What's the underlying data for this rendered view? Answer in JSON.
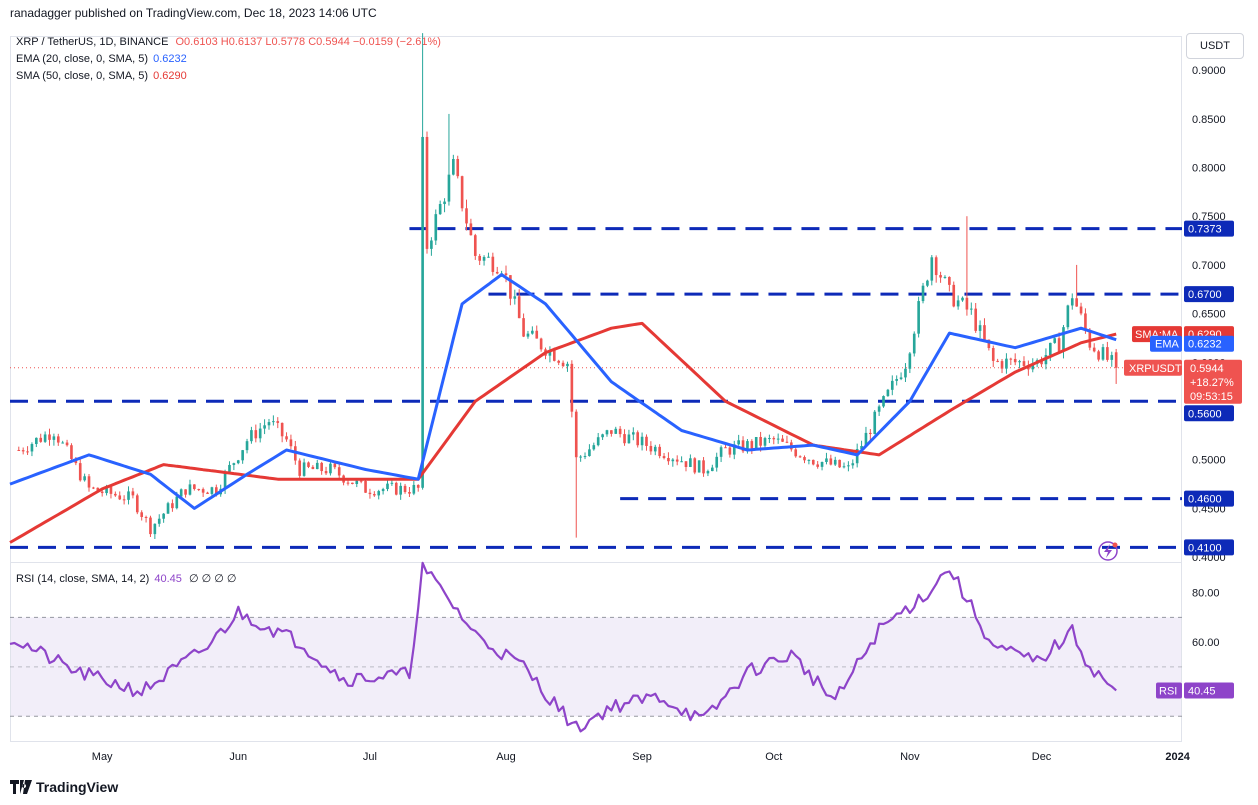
{
  "header": {
    "published": "ranadagger published on TradingView.com, Dec 18, 2023 14:06 UTC"
  },
  "legend": {
    "symbol": "XRP / TetherUS, 1D, BINANCE",
    "ohlc": "O0.6103 H0.6137 L0.5778 C0.5944 −0.0159 (−2.61%)",
    "ema_label": "EMA (20, close, 0, SMA, 5)",
    "ema_value": "0.6232",
    "sma_label": "SMA (50, close, 0, SMA, 5)",
    "sma_value": "0.6290",
    "rsi_label": "RSI (14, close, SMA, 14, 2)",
    "rsi_value": "40.45",
    "rsi_extra": "∅ ∅ ∅ ∅"
  },
  "scale_button": "USDT",
  "price_axis_ticks": [
    "0.9000",
    "0.8500",
    "0.8000",
    "0.7500",
    "0.7000",
    "0.6500",
    "0.6000",
    "0.5500",
    "0.5000",
    "0.4500",
    "0.4000"
  ],
  "rsi_axis_ticks": [
    "80.00",
    "60.00"
  ],
  "time_axis_ticks": [
    "May",
    "Jun",
    "Jul",
    "Aug",
    "Sep",
    "Oct",
    "Nov",
    "Dec",
    "2024"
  ],
  "price_labels": {
    "level_0737": "0.7373",
    "level_0670": "0.6700",
    "sma_ma_tag": "SMA:MA",
    "sma_ma_value": "0.6290",
    "ema_tag": "EMA",
    "ema_value": "0.6232",
    "symbol_tag": "XRPUSDT",
    "last_price": "0.5944",
    "change": "+18.27%",
    "countdown": "09:53:15",
    "level_0560": "0.5600",
    "level_0460": "0.4600",
    "level_0410": "0.4100",
    "rsi_tag": "RSI",
    "rsi_value": "40.45"
  },
  "footer": {
    "brand": "TradingView"
  },
  "colors": {
    "up": "#26a69a",
    "down": "#ef5350",
    "ema": "#2962ff",
    "sma": "#e53935",
    "level": "#0d2ab8",
    "rsi": "#8e44c9",
    "rsi_band": "#ede7f6"
  },
  "chart_data": {
    "type": "candlestick",
    "symbol": "XRP / TetherUS",
    "interval": "1D",
    "exchange": "BINANCE",
    "x_range": [
      "2023-04-10",
      "2024-01-02"
    ],
    "ylim": [
      0.395,
      0.935
    ],
    "horizontal_levels": [
      0.7373,
      0.67,
      0.56,
      0.46,
      0.41
    ],
    "price_anchor_points": [
      {
        "date": "2023-04-12",
        "close": 0.51
      },
      {
        "date": "2023-04-20",
        "close": 0.53
      },
      {
        "date": "2023-04-28",
        "close": 0.47
      },
      {
        "date": "2023-05-08",
        "close": 0.46
      },
      {
        "date": "2023-05-12",
        "close": 0.43
      },
      {
        "date": "2023-05-20",
        "close": 0.47
      },
      {
        "date": "2023-05-27",
        "close": 0.47
      },
      {
        "date": "2023-06-03",
        "close": 0.52
      },
      {
        "date": "2023-06-08",
        "close": 0.54
      },
      {
        "date": "2023-06-12",
        "close": 0.52
      },
      {
        "date": "2023-06-15",
        "close": 0.49
      },
      {
        "date": "2023-06-22",
        "close": 0.49
      },
      {
        "date": "2023-06-30",
        "close": 0.47
      },
      {
        "date": "2023-07-08",
        "close": 0.47
      },
      {
        "date": "2023-07-12",
        "close": 0.47
      },
      {
        "date": "2023-07-13",
        "close": 0.82
      },
      {
        "date": "2023-07-14",
        "close": 0.72
      },
      {
        "date": "2023-07-20",
        "close": 0.8
      },
      {
        "date": "2023-07-25",
        "close": 0.71
      },
      {
        "date": "2023-07-31",
        "close": 0.7
      },
      {
        "date": "2023-08-05",
        "close": 0.63
      },
      {
        "date": "2023-08-15",
        "close": 0.6
      },
      {
        "date": "2023-08-17",
        "close": 0.5
      },
      {
        "date": "2023-08-25",
        "close": 0.53
      },
      {
        "date": "2023-09-05",
        "close": 0.51
      },
      {
        "date": "2023-09-15",
        "close": 0.49
      },
      {
        "date": "2023-09-20",
        "close": 0.51
      },
      {
        "date": "2023-10-01",
        "close": 0.52
      },
      {
        "date": "2023-10-10",
        "close": 0.5
      },
      {
        "date": "2023-10-18",
        "close": 0.49
      },
      {
        "date": "2023-10-25",
        "close": 0.55
      },
      {
        "date": "2023-10-31",
        "close": 0.6
      },
      {
        "date": "2023-11-06",
        "close": 0.71
      },
      {
        "date": "2023-11-10",
        "close": 0.67
      },
      {
        "date": "2023-11-15",
        "close": 0.65
      },
      {
        "date": "2023-11-20",
        "close": 0.6
      },
      {
        "date": "2023-11-30",
        "close": 0.6
      },
      {
        "date": "2023-12-05",
        "close": 0.62
      },
      {
        "date": "2023-12-08",
        "close": 0.67
      },
      {
        "date": "2023-12-12",
        "close": 0.62
      },
      {
        "date": "2023-12-18",
        "close": 0.5944
      }
    ],
    "spikes": [
      {
        "date": "2023-07-13",
        "high": 0.938
      },
      {
        "date": "2023-07-19",
        "high": 0.855
      },
      {
        "date": "2023-08-17",
        "low": 0.42
      },
      {
        "date": "2023-11-14",
        "high": 0.75
      },
      {
        "date": "2023-12-09",
        "high": 0.7
      }
    ],
    "last_candle": {
      "date": "2023-12-18",
      "open": 0.6103,
      "high": 0.6137,
      "low": 0.5778,
      "close": 0.5944
    },
    "ema20_anchor_points": [
      {
        "date": "2023-04-10",
        "value": 0.475
      },
      {
        "date": "2023-04-28",
        "value": 0.505
      },
      {
        "date": "2023-05-12",
        "value": 0.485
      },
      {
        "date": "2023-05-22",
        "value": 0.45
      },
      {
        "date": "2023-06-03",
        "value": 0.485
      },
      {
        "date": "2023-06-12",
        "value": 0.51
      },
      {
        "date": "2023-06-30",
        "value": 0.49
      },
      {
        "date": "2023-07-12",
        "value": 0.48
      },
      {
        "date": "2023-07-22",
        "value": 0.66
      },
      {
        "date": "2023-07-31",
        "value": 0.69
      },
      {
        "date": "2023-08-10",
        "value": 0.66
      },
      {
        "date": "2023-08-25",
        "value": 0.58
      },
      {
        "date": "2023-09-10",
        "value": 0.53
      },
      {
        "date": "2023-09-25",
        "value": 0.51
      },
      {
        "date": "2023-10-10",
        "value": 0.515
      },
      {
        "date": "2023-10-20",
        "value": 0.505
      },
      {
        "date": "2023-11-01",
        "value": 0.56
      },
      {
        "date": "2023-11-10",
        "value": 0.63
      },
      {
        "date": "2023-11-25",
        "value": 0.615
      },
      {
        "date": "2023-12-10",
        "value": 0.635
      },
      {
        "date": "2023-12-18",
        "value": 0.6232
      }
    ],
    "sma50_anchor_points": [
      {
        "date": "2023-04-10",
        "value": 0.415
      },
      {
        "date": "2023-05-01",
        "value": 0.47
      },
      {
        "date": "2023-05-15",
        "value": 0.495
      },
      {
        "date": "2023-06-10",
        "value": 0.48
      },
      {
        "date": "2023-07-12",
        "value": 0.48
      },
      {
        "date": "2023-07-25",
        "value": 0.56
      },
      {
        "date": "2023-08-10",
        "value": 0.61
      },
      {
        "date": "2023-08-25",
        "value": 0.635
      },
      {
        "date": "2023-09-01",
        "value": 0.64
      },
      {
        "date": "2023-09-20",
        "value": 0.56
      },
      {
        "date": "2023-10-10",
        "value": 0.515
      },
      {
        "date": "2023-10-25",
        "value": 0.505
      },
      {
        "date": "2023-11-10",
        "value": 0.55
      },
      {
        "date": "2023-11-25",
        "value": 0.59
      },
      {
        "date": "2023-12-10",
        "value": 0.62
      },
      {
        "date": "2023-12-18",
        "value": 0.629
      }
    ],
    "rsi": {
      "period": 14,
      "ylim": [
        20,
        92
      ],
      "bands": [
        70,
        30
      ],
      "anchor_points": [
        {
          "date": "2023-04-10",
          "value": 62
        },
        {
          "date": "2023-04-25",
          "value": 48
        },
        {
          "date": "2023-05-10",
          "value": 40
        },
        {
          "date": "2023-05-25",
          "value": 58
        },
        {
          "date": "2023-06-01",
          "value": 72
        },
        {
          "date": "2023-06-15",
          "value": 60
        },
        {
          "date": "2023-06-25",
          "value": 45
        },
        {
          "date": "2023-07-10",
          "value": 47
        },
        {
          "date": "2023-07-13",
          "value": 90
        },
        {
          "date": "2023-07-20",
          "value": 75
        },
        {
          "date": "2023-07-25",
          "value": 63
        },
        {
          "date": "2023-08-05",
          "value": 50
        },
        {
          "date": "2023-08-17",
          "value": 25
        },
        {
          "date": "2023-08-25",
          "value": 34
        },
        {
          "date": "2023-09-05",
          "value": 38
        },
        {
          "date": "2023-09-15",
          "value": 28
        },
        {
          "date": "2023-09-25",
          "value": 48
        },
        {
          "date": "2023-10-05",
          "value": 55
        },
        {
          "date": "2023-10-15",
          "value": 36
        },
        {
          "date": "2023-10-25",
          "value": 65
        },
        {
          "date": "2023-11-05",
          "value": 80
        },
        {
          "date": "2023-11-10",
          "value": 90
        },
        {
          "date": "2023-11-20",
          "value": 58
        },
        {
          "date": "2023-11-30",
          "value": 52
        },
        {
          "date": "2023-12-08",
          "value": 64
        },
        {
          "date": "2023-12-12",
          "value": 50
        },
        {
          "date": "2023-12-18",
          "value": 40.45
        }
      ]
    }
  }
}
